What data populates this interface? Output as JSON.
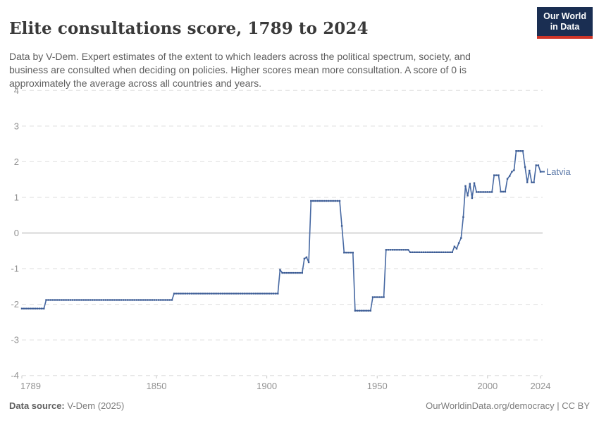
{
  "header": {
    "title": "Elite consultations score, 1789 to 2024",
    "subtitle": "Data by V-Dem. Expert estimates of the extent to which leaders across the political spectrum, society, and business are consulted when deciding on policies. Higher scores mean more consultation. A score of 0 is approximately the average across all countries and years.",
    "logo": {
      "line1": "Our World",
      "line2": "in Data",
      "bg": "#1a2e52",
      "stripe": "#cf3528"
    }
  },
  "chart_data": {
    "type": "line",
    "title": "Elite consultations score, 1789 to 2024",
    "xlabel": "",
    "ylabel": "",
    "x_range": [
      1789,
      2024
    ],
    "ylim": [
      -4,
      4
    ],
    "y_ticks": [
      4,
      3,
      2,
      1,
      0,
      -1,
      -2,
      -3,
      -4
    ],
    "x_ticks": [
      1789,
      1850,
      1900,
      1950,
      2000,
      2024
    ],
    "grid": "horizontal-dashed",
    "zero_line": true,
    "legend_position": "end-of-line-label",
    "series": [
      {
        "name": "Latvia",
        "color": "#4668a2",
        "marker_color": "#3d5c94",
        "label_color": "#5d7aa9",
        "segments": [
          {
            "from": 1789,
            "to": 1799,
            "value": -2.12
          },
          {
            "from": 1800,
            "to": 1857,
            "value": -1.88
          },
          {
            "from": 1858,
            "to": 1905,
            "value": -1.7
          },
          {
            "from": 1906,
            "to": 1906,
            "value": -1.03
          },
          {
            "from": 1907,
            "to": 1916,
            "value": -1.12
          },
          {
            "from": 1917,
            "to": 1917,
            "value": -0.72
          },
          {
            "from": 1918,
            "to": 1918,
            "value": -0.68
          },
          {
            "from": 1919,
            "to": 1919,
            "value": -0.82
          },
          {
            "from": 1920,
            "to": 1933,
            "value": 0.9
          },
          {
            "from": 1934,
            "to": 1934,
            "value": 0.2
          },
          {
            "from": 1935,
            "to": 1939,
            "value": -0.55
          },
          {
            "from": 1940,
            "to": 1947,
            "value": -2.18
          },
          {
            "from": 1948,
            "to": 1953,
            "value": -1.8
          },
          {
            "from": 1954,
            "to": 1964,
            "value": -0.47
          },
          {
            "from": 1965,
            "to": 1984,
            "value": -0.54
          },
          {
            "from": 1985,
            "to": 1985,
            "value": -0.38
          },
          {
            "from": 1986,
            "to": 1986,
            "value": -0.44
          },
          {
            "from": 1987,
            "to": 1987,
            "value": -0.28
          },
          {
            "from": 1988,
            "to": 1988,
            "value": -0.14
          },
          {
            "from": 1989,
            "to": 1989,
            "value": 0.45
          },
          {
            "from": 1990,
            "to": 1990,
            "value": 1.32
          },
          {
            "from": 1991,
            "to": 1991,
            "value": 1.05
          },
          {
            "from": 1992,
            "to": 1992,
            "value": 1.38
          },
          {
            "from": 1993,
            "to": 1993,
            "value": 0.98
          },
          {
            "from": 1994,
            "to": 1994,
            "value": 1.4
          },
          {
            "from": 1995,
            "to": 2002,
            "value": 1.15
          },
          {
            "from": 2003,
            "to": 2005,
            "value": 1.62
          },
          {
            "from": 2006,
            "to": 2008,
            "value": 1.16
          },
          {
            "from": 2009,
            "to": 2009,
            "value": 1.52
          },
          {
            "from": 2010,
            "to": 2010,
            "value": 1.6
          },
          {
            "from": 2011,
            "to": 2011,
            "value": 1.72
          },
          {
            "from": 2012,
            "to": 2012,
            "value": 1.76
          },
          {
            "from": 2013,
            "to": 2016,
            "value": 2.3
          },
          {
            "from": 2017,
            "to": 2017,
            "value": 1.85
          },
          {
            "from": 2018,
            "to": 2018,
            "value": 1.42
          },
          {
            "from": 2019,
            "to": 2019,
            "value": 1.75
          },
          {
            "from": 2020,
            "to": 2021,
            "value": 1.42
          },
          {
            "from": 2022,
            "to": 2023,
            "value": 1.9
          },
          {
            "from": 2024,
            "to": 2024,
            "value": 1.72
          }
        ]
      }
    ],
    "colors": {
      "grid": "#dedede",
      "zero_line": "#a3a3a3",
      "axis_text": "#929292",
      "tick_mark": "#c8c8c8"
    }
  },
  "footer": {
    "source_label": "Data source:",
    "source_value": " V-Dem (2025)",
    "credit": "OurWorldinData.org/democracy | CC BY"
  }
}
